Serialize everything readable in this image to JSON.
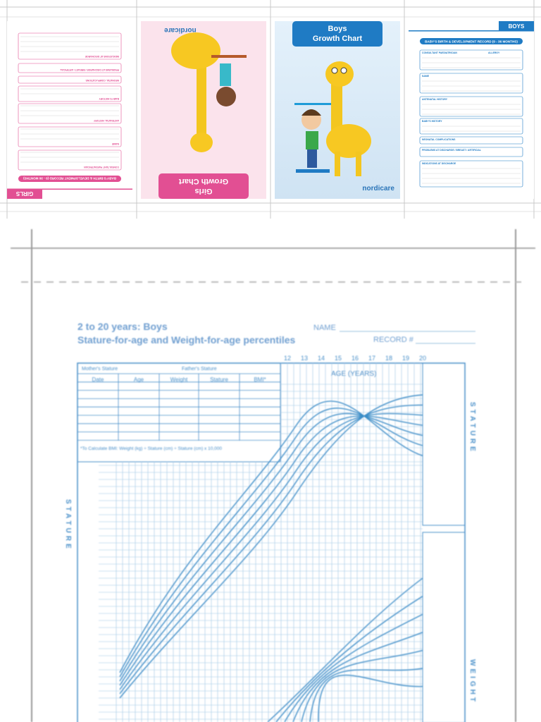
{
  "girls_form": {
    "header": "GIRLS",
    "title": "BABY'S BIRTH & DEVELOPMENT RECORD (0 - 36 MONTHS)",
    "sections": [
      "CONSULTANT PAEDIATRICIAN",
      "NAME",
      "ANTENATAL HISTORY",
      "BABY'S HISTORY",
      "NEONATAL COMPLICATIONS",
      "PROBLEMS AT DISCHARGE / BREAST / ARTIFICIAL",
      "INDICATIONS AT DISCHARGE"
    ]
  },
  "girls_cover": {
    "title_lines": [
      "Girls",
      "Growth Chart"
    ],
    "brand": "nordicare"
  },
  "boys_cover": {
    "title_lines": [
      "Boys",
      "Growth Chart"
    ],
    "brand": "nordicare"
  },
  "boys_form": {
    "header": "BOYS",
    "title": "BABY'S BIRTH & DEVELOPMENT RECORD (0 - 36 MONTHS)",
    "sections": [
      "CONSULTANT PAEDIATRICIAN",
      "NAME",
      "ANTENATAL HISTORY",
      "BABY'S HISTORY",
      "NEONATAL COMPLICATIONS",
      "PROBLEMS AT DISCHARGE / BREAST / ARTIFICIAL",
      "INDICATIONS AT DISCHARGE"
    ],
    "allergy_label": "ALLERGY"
  },
  "growth_chart": {
    "title": "2 to 20 years: Boys",
    "subtitle": "Stature-for-age and Weight-for-age percentiles",
    "name_label": "NAME",
    "record_label": "RECORD #",
    "ages": [
      12,
      13,
      14,
      15,
      16,
      17,
      18,
      19,
      20
    ],
    "age_label": "AGE (YEARS)",
    "mother_label": "Mother's Stature",
    "father_label": "Father's Stature",
    "table_headers": [
      "Date",
      "Age",
      "Weight",
      "Stature",
      "BMI*"
    ],
    "note": "*To Calculate BMI: Weight (kg) ÷ Stature (cm) ÷ Stature (cm) x 10,000",
    "stature_label": "STATURE",
    "weight_label": "WEIGHT"
  }
}
